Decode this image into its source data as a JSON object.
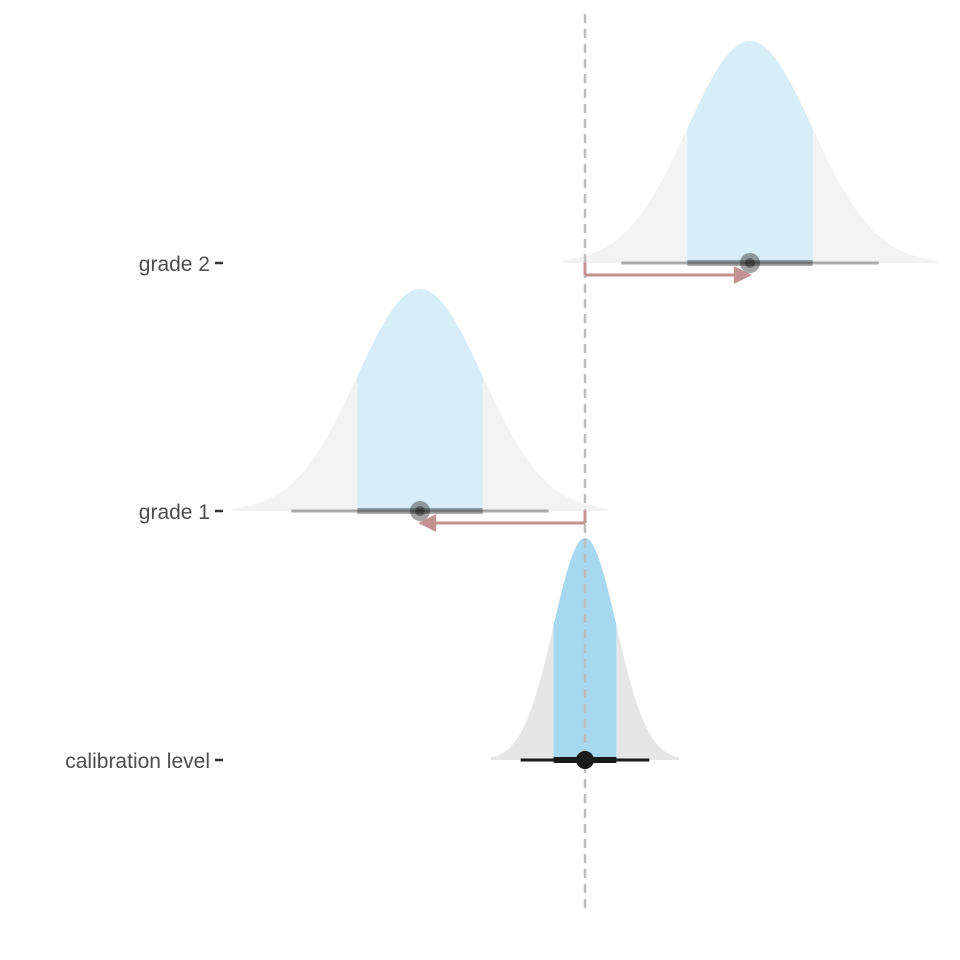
{
  "chart_data": {
    "type": "halfeye",
    "x_axis_shown": false,
    "grid": false,
    "reference_line": {
      "x": 0,
      "style": "dashed",
      "color": "#bdbdbd"
    },
    "categories": [
      "grade 2",
      "grade 1",
      "calibration level"
    ],
    "series": [
      {
        "label": "grade 2",
        "mean": 1.0,
        "sd": 0.38,
        "interval_inner": [
          0.62,
          1.38
        ],
        "interval_outer": [
          0.22,
          1.78
        ],
        "shift_arrow": {
          "from": 0,
          "to": 1.0
        },
        "highlight": false
      },
      {
        "label": "grade 1",
        "mean": -1.0,
        "sd": 0.38,
        "interval_inner": [
          -1.38,
          -0.62
        ],
        "interval_outer": [
          -1.78,
          -0.22
        ],
        "shift_arrow": {
          "from": 0,
          "to": -1.0
        },
        "highlight": false
      },
      {
        "label": "calibration level",
        "mean": 0.0,
        "sd": 0.19,
        "interval_inner": [
          -0.19,
          0.19
        ],
        "interval_outer": [
          -0.39,
          0.39
        ],
        "shift_arrow": null,
        "highlight": true
      }
    ],
    "colors": {
      "inner_fill": "#a6d9ef",
      "inner_fill_muted": "#d7eef8",
      "tail_fill": "#e6e6e6",
      "tail_fill_muted": "#f3f3f3",
      "arrow": "#c49292",
      "point": "#1a1a1a"
    }
  }
}
